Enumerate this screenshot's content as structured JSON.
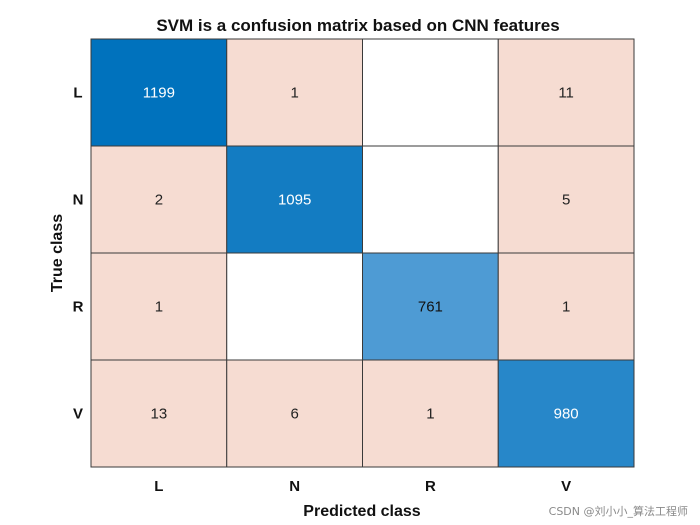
{
  "chart_data": {
    "type": "heatmap",
    "title": "SVM is a confusion matrix based on CNN features",
    "xlabel": "Predicted class",
    "ylabel": "True class",
    "row_labels": [
      "L",
      "N",
      "R",
      "V"
    ],
    "col_labels": [
      "L",
      "N",
      "R",
      "V"
    ],
    "values": [
      [
        1199,
        1,
        null,
        11
      ],
      [
        2,
        1095,
        null,
        5
      ],
      [
        1,
        null,
        761,
        1
      ],
      [
        13,
        6,
        1,
        980
      ]
    ],
    "colors": {
      "diagonal_strong": "#0072bd",
      "diagonal_light": "#4e9bd4",
      "off_diagonal": "#f6dcd2",
      "empty": "#ffffff",
      "grid": "#3a3a3a"
    }
  },
  "watermark": "CSDN @刘小小_算法工程师"
}
